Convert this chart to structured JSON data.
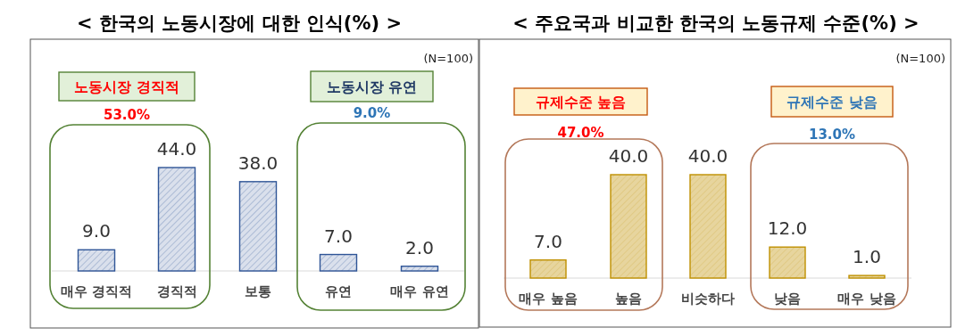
{
  "chart_data": [
    {
      "type": "bar",
      "title": "< 한국의 노동시장에 대한 인식(%) >",
      "categories": [
        "매우 경직적",
        "경직적",
        "보통",
        "유연",
        "매우 유연"
      ],
      "values": [
        9.0,
        44.0,
        38.0,
        7.0,
        2.0
      ],
      "value_labels": [
        "9.0",
        "44.0",
        "38.0",
        "7.0",
        "2.0"
      ],
      "color": "#2f5597",
      "annotations": [
        "(N=100)",
        "노동시장 경직적",
        "53.0%",
        "노동시장 유연",
        "9.0%"
      ]
    },
    {
      "type": "bar",
      "title": "< 주요국과 비교한 한국의 노동규제 수준(%) >",
      "categories": [
        "매우 높음",
        "높음",
        "비슷하다",
        "낮음",
        "매우 낮음"
      ],
      "values": [
        7.0,
        40.0,
        40.0,
        12.0,
        1.0
      ],
      "value_labels": [
        "7.0",
        "40.0",
        "40.0",
        "12.0",
        "1.0"
      ],
      "color": "#bf9000",
      "annotations": [
        "(N=100)",
        "규제수준 높음",
        "47.0%",
        "규제수준 낮음",
        "13.0%"
      ]
    }
  ]
}
